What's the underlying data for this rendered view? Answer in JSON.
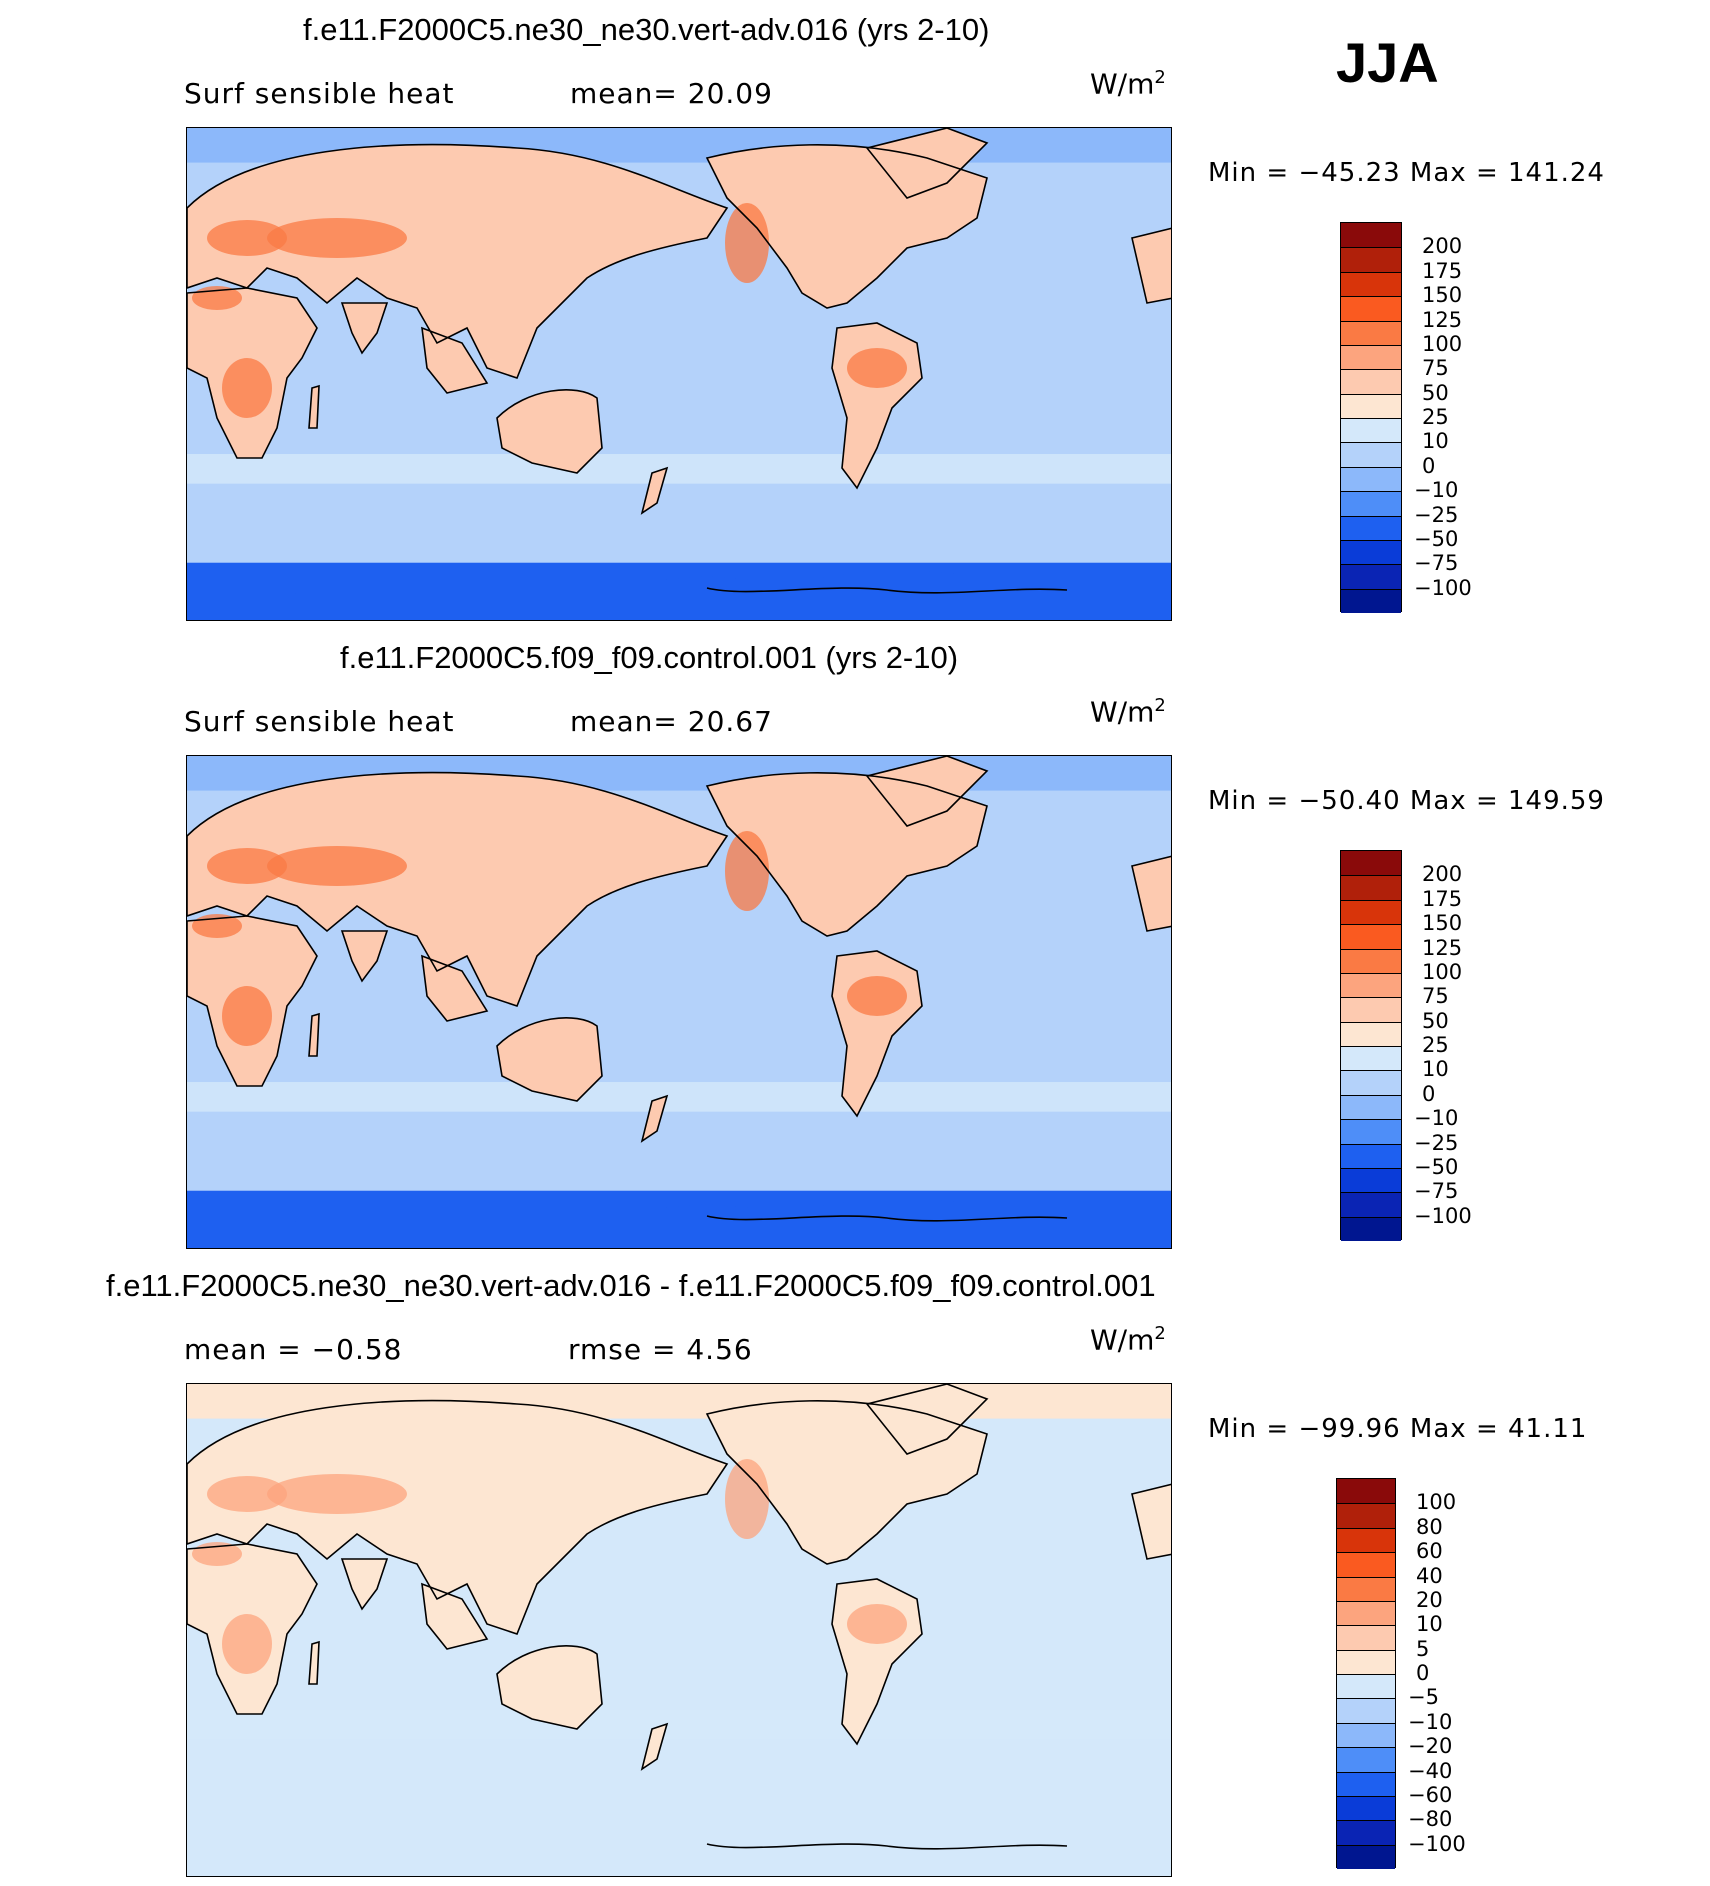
{
  "season": "JJA",
  "panels": [
    {
      "title": "f.e11.F2000C5.ne30_ne30.vert-adv.016 (yrs 2-10)",
      "stat_left": "Surf  sensible  heat",
      "stat_right": "mean=   20.09",
      "unit": "W/m",
      "unit_exp": "2",
      "minmax": "Min  =  −45.23  Max  =  141.24",
      "levels": [
        "200",
        "175",
        "150",
        "125",
        "100",
        "75",
        "50",
        "25",
        "10",
        "0",
        "−10",
        "−25",
        "−50",
        "−75",
        "−100"
      ],
      "colors": [
        "#8a0a0a",
        "#b0200a",
        "#d8340a",
        "#fa5a20",
        "#fa7a44",
        "#fca47e",
        "#fdcab0",
        "#fde6d2",
        "#d4e8fa",
        "#b4d2fa",
        "#8cb8fa",
        "#4e8ef8",
        "#1e60f0",
        "#0a3cd8",
        "#0a24b4",
        "#001690"
      ],
      "map": {
        "sea": "#b4d2fa",
        "south_ocean": "#1e60f0",
        "land": "#fdcab0",
        "land_hot": "#fa7a44",
        "arctic": "#8cb8fa"
      }
    },
    {
      "title": "f.e11.F2000C5.f09_f09.control.001 (yrs 2-10)",
      "stat_left": "Surf  sensible  heat",
      "stat_right": "mean=   20.67",
      "unit": "W/m",
      "unit_exp": "2",
      "minmax": "Min  =  −50.40  Max  =  149.59",
      "levels": [
        "200",
        "175",
        "150",
        "125",
        "100",
        "75",
        "50",
        "25",
        "10",
        "0",
        "−10",
        "−25",
        "−50",
        "−75",
        "−100"
      ],
      "colors": [
        "#8a0a0a",
        "#b0200a",
        "#d8340a",
        "#fa5a20",
        "#fa7a44",
        "#fca47e",
        "#fdcab0",
        "#fde6d2",
        "#d4e8fa",
        "#b4d2fa",
        "#8cb8fa",
        "#4e8ef8",
        "#1e60f0",
        "#0a3cd8",
        "#0a24b4",
        "#001690"
      ],
      "map": {
        "sea": "#b4d2fa",
        "south_ocean": "#1e60f0",
        "land": "#fdcab0",
        "land_hot": "#fa7a44",
        "arctic": "#8cb8fa"
      }
    },
    {
      "title": "f.e11.F2000C5.ne30_ne30.vert-adv.016 - f.e11.F2000C5.f09_f09.control.001",
      "stat_left": "mean  =    −0.58",
      "stat_right": "rmse  =     4.56",
      "unit": "W/m",
      "unit_exp": "2",
      "minmax": "Min  =  −99.96  Max  =    41.11",
      "levels": [
        "100",
        "80",
        "60",
        "40",
        "20",
        "10",
        "5",
        "0",
        "−5",
        "−10",
        "−20",
        "−40",
        "−60",
        "−80",
        "−100"
      ],
      "colors": [
        "#8a0a0a",
        "#b0200a",
        "#d8340a",
        "#fa5a20",
        "#fa7a44",
        "#fca47e",
        "#fdcab0",
        "#fde6d2",
        "#d4e8fa",
        "#b4d2fa",
        "#8cb8fa",
        "#4e8ef8",
        "#1e60f0",
        "#0a3cd8",
        "#0a24b4",
        "#001690"
      ],
      "map": {
        "sea": "#d4e8fa",
        "south_ocean": "#d4e8fa",
        "land": "#fde6d2",
        "land_hot": "#fca47e",
        "arctic": "#fde6d2"
      }
    }
  ]
}
